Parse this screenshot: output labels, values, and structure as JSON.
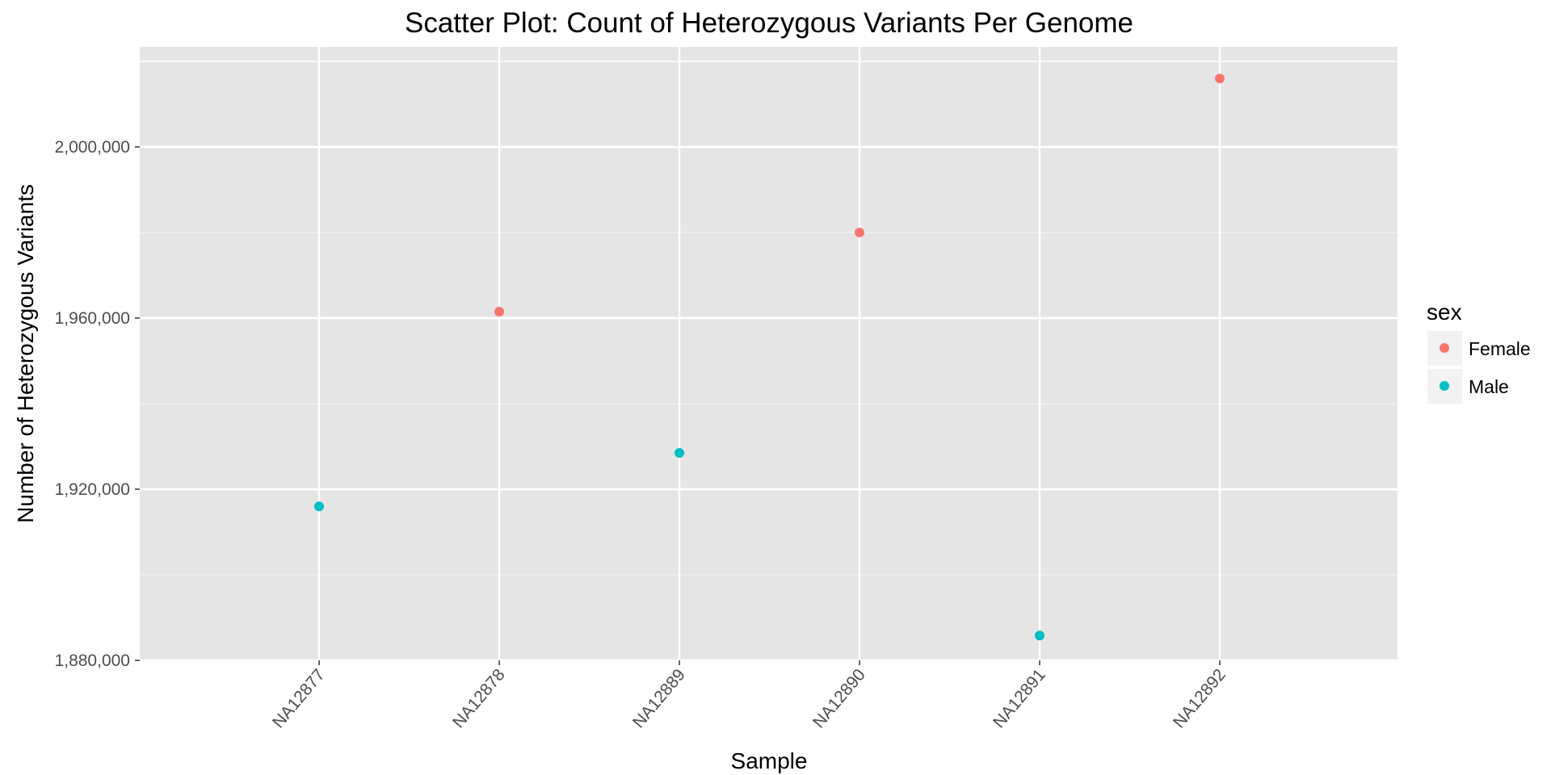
{
  "chart_data": {
    "type": "scatter",
    "title": "Scatter Plot: Count of Heterozygous Variants Per Genome",
    "xlabel": "Sample",
    "ylabel": "Number of Heterozygous Variants",
    "categories": [
      "NA12877",
      "NA12878",
      "NA12889",
      "NA12890",
      "NA12891",
      "NA12892"
    ],
    "ylim": [
      1880000,
      2020000
    ],
    "yticks": [
      1880000,
      1920000,
      1960000,
      2000000
    ],
    "ytick_labels": [
      "1,880,000",
      "1,920,000",
      "1,960,000",
      "2,000,000"
    ],
    "grid": true,
    "legend": {
      "title": "sex",
      "placement": "right",
      "entries": [
        {
          "label": "Female",
          "color": "#F8766D"
        },
        {
          "label": "Male",
          "color": "#00BFC4"
        }
      ]
    },
    "points": [
      {
        "x": "NA12877",
        "y": 1916000,
        "sex": "Male"
      },
      {
        "x": "NA12878",
        "y": 1961500,
        "sex": "Female"
      },
      {
        "x": "NA12889",
        "y": 1928500,
        "sex": "Male"
      },
      {
        "x": "NA12890",
        "y": 1980000,
        "sex": "Female"
      },
      {
        "x": "NA12891",
        "y": 1885800,
        "sex": "Male"
      },
      {
        "x": "NA12892",
        "y": 2016000,
        "sex": "Female"
      }
    ]
  }
}
